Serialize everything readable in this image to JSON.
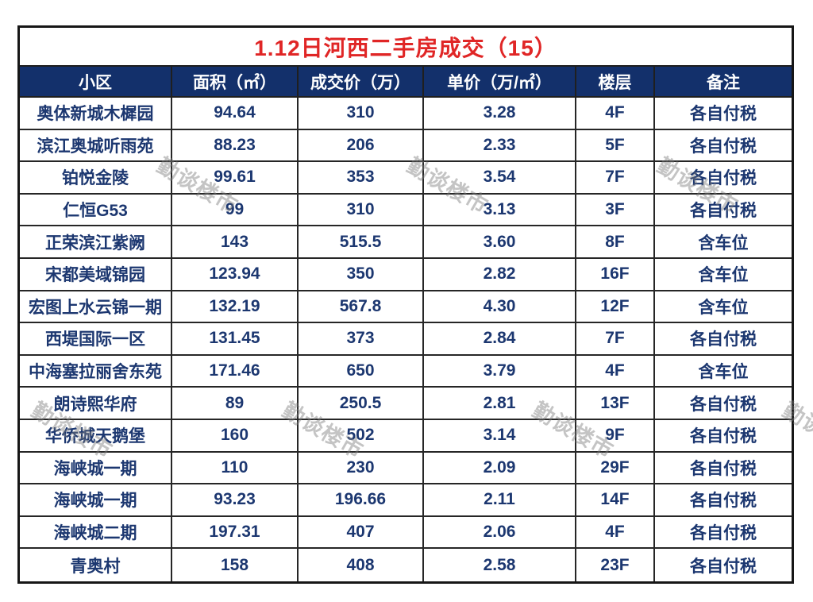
{
  "chart_data": {
    "type": "table",
    "title": "1.12日河西二手房成交（15）",
    "columns": [
      "小区",
      "面积（㎡）",
      "成交价（万）",
      "单价（万/㎡）",
      "楼层",
      "备注"
    ],
    "rows": [
      [
        "奥体新城木樨园",
        "94.64",
        "310",
        "3.28",
        "4F",
        "各自付税"
      ],
      [
        "滨江奥城听雨苑",
        "88.23",
        "206",
        "2.33",
        "5F",
        "各自付税"
      ],
      [
        "铂悦金陵",
        "99.61",
        "353",
        "3.54",
        "7F",
        "各自付税"
      ],
      [
        "仁恒G53",
        "99",
        "310",
        "3.13",
        "3F",
        "各自付税"
      ],
      [
        "正荣滨江紫阙",
        "143",
        "515.5",
        "3.60",
        "8F",
        "含车位"
      ],
      [
        "宋都美域锦园",
        "123.94",
        "350",
        "2.82",
        "16F",
        "含车位"
      ],
      [
        "宏图上水云锦一期",
        "132.19",
        "567.8",
        "4.30",
        "12F",
        "含车位"
      ],
      [
        "西堤国际一区",
        "131.45",
        "373",
        "2.84",
        "7F",
        "各自付税"
      ],
      [
        "中海塞拉丽舍东苑",
        "171.46",
        "650",
        "3.79",
        "4F",
        "含车位"
      ],
      [
        "朗诗熙华府",
        "89",
        "250.5",
        "2.81",
        "13F",
        "各自付税"
      ],
      [
        "华侨城天鹅堡",
        "160",
        "502",
        "3.14",
        "9F",
        "各自付税"
      ],
      [
        "海峡城一期",
        "110",
        "230",
        "2.09",
        "29F",
        "各自付税"
      ],
      [
        "海峡城一期",
        "93.23",
        "196.66",
        "2.11",
        "14F",
        "各自付税"
      ],
      [
        "海峡城二期",
        "197.31",
        "407",
        "2.06",
        "4F",
        "各自付税"
      ],
      [
        "青奥村",
        "158",
        "408",
        "2.58",
        "23F",
        "各自付税"
      ]
    ]
  },
  "watermark": {
    "text": "勤谈楼市"
  },
  "colors": {
    "title_red": "#e02626",
    "header_bg": "#13306b",
    "data_text": "#1c3770",
    "grid_border": "#1f1f1f"
  }
}
